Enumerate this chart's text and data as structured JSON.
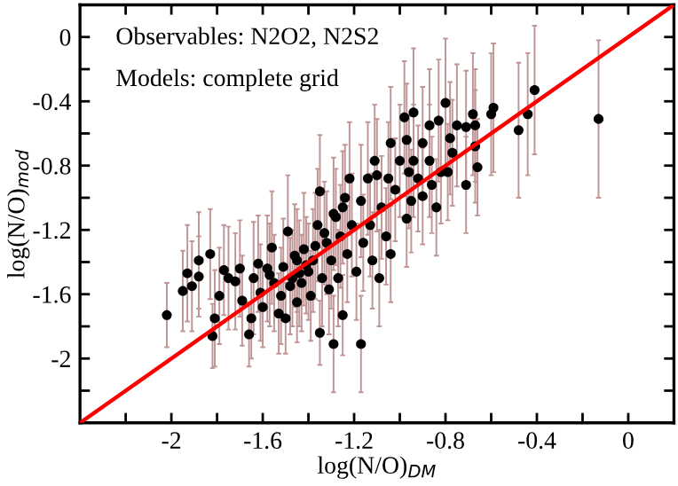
{
  "chart_data": {
    "type": "scatter",
    "xlabel": "log(N/O)$_{DM}$",
    "ylabel": "log(N/O)$_{mod}$",
    "annotations": [
      "Observables: N2O2, N2S2",
      "Models: complete grid"
    ],
    "xlim": [
      -2.4,
      0.2
    ],
    "ylim": [
      -2.4,
      0.2
    ],
    "xticks": [
      {
        "value": -2.2,
        "label": null
      },
      -2,
      {
        "value": -1.8,
        "label": null
      },
      -1.6,
      {
        "value": -1.4,
        "label": null
      },
      -1.2,
      {
        "value": -1,
        "label": null
      },
      -0.8,
      {
        "value": -0.6,
        "label": null
      },
      -0.4,
      {
        "value": -0.2,
        "label": null
      },
      0
    ],
    "yticks": [
      {
        "value": -2.2,
        "label": null
      },
      -2,
      {
        "value": -1.8,
        "label": null
      },
      -1.6,
      {
        "value": -1.4,
        "label": null
      },
      -1.2,
      {
        "value": -1,
        "label": null
      },
      -0.8,
      {
        "value": -0.6,
        "label": null
      },
      -0.4,
      {
        "value": -0.2,
        "label": null
      },
      0
    ],
    "grid": false,
    "legend": false,
    "series": [
      {
        "color": "#000000",
        "marker": "circle",
        "x": [
          -2.02,
          -1.95,
          -1.93,
          -1.91,
          -1.88,
          -1.88,
          -1.82,
          -1.81,
          -1.83,
          -1.79,
          -1.75,
          -1.7,
          -1.69,
          -1.66,
          -1.65,
          -1.64,
          -1.61,
          -1.6,
          -1.58,
          -1.56,
          -1.55,
          -1.53,
          -1.52,
          -1.51,
          -1.5,
          -1.49,
          -1.47,
          -1.45,
          -1.45,
          -1.43,
          -1.42,
          -1.4,
          -1.39,
          -1.38,
          -1.36,
          -1.35,
          -1.35,
          -1.34,
          -1.32,
          -1.31,
          -1.3,
          -1.29,
          -1.29,
          -1.27,
          -1.26,
          -1.25,
          -1.23,
          -1.25,
          -1.22,
          -1.21,
          -1.19,
          -1.17,
          -1.17,
          -1.16,
          -1.14,
          -1.13,
          -1.12,
          -1.11,
          -1.09,
          -1.08,
          -1.06,
          -1.05,
          -1.04,
          -1.04,
          -1.02,
          -1.0,
          -0.98,
          -0.97,
          -0.97,
          -0.96,
          -0.95,
          -0.94,
          -0.94,
          -0.92,
          -0.9,
          -0.9,
          -0.87,
          -0.87,
          -0.84,
          -0.83,
          -0.82,
          -0.8,
          -0.79,
          -0.78,
          -0.77,
          -0.75,
          -0.86,
          -0.71,
          -0.71,
          -0.68,
          -0.67,
          -0.67,
          -0.66,
          -0.59,
          -0.6,
          -0.48,
          -0.44,
          -0.41,
          -0.13,
          -1.57,
          -1.48,
          -1.44,
          -1.41,
          -1.46,
          -1.37,
          -1.62,
          -1.72,
          -1.77,
          -1.33,
          -1.28,
          -1.24,
          -1.1
        ],
        "values": [
          -1.73,
          -1.58,
          -1.47,
          -1.55,
          -1.39,
          -1.49,
          -1.86,
          -1.75,
          -1.35,
          -1.61,
          -1.5,
          -1.44,
          -1.64,
          -1.85,
          -1.75,
          -1.5,
          -1.59,
          -1.68,
          -1.44,
          -1.31,
          -1.53,
          -1.72,
          -1.61,
          -1.43,
          -1.75,
          -1.21,
          -1.5,
          -1.39,
          -1.65,
          -1.53,
          -1.32,
          -1.46,
          -1.61,
          -1.39,
          -1.17,
          -0.96,
          -1.84,
          -1.5,
          -1.28,
          -1.57,
          -1.39,
          -1.91,
          -1.1,
          -1.5,
          -1.24,
          -1.06,
          -1.35,
          -1.73,
          -0.88,
          -1.17,
          -1.46,
          -1.91,
          -1.02,
          -1.28,
          -0.88,
          -1.17,
          -1.39,
          -0.77,
          -1.5,
          -1.06,
          -1.24,
          -0.88,
          -0.66,
          -1.35,
          -0.95,
          -0.77,
          -0.5,
          -0.64,
          -1.13,
          -0.84,
          -1.02,
          -0.77,
          -0.47,
          -0.88,
          -0.66,
          -0.99,
          -0.55,
          -0.77,
          -1.06,
          -0.52,
          -0.84,
          -0.41,
          -0.84,
          -0.63,
          -0.72,
          -0.55,
          -0.92,
          -0.92,
          -0.56,
          -0.48,
          -0.68,
          -0.55,
          -0.81,
          -0.44,
          -0.48,
          -0.58,
          -0.48,
          -0.33,
          -0.51,
          -1.48,
          -1.55,
          -1.47,
          -1.42,
          -1.36,
          -1.3,
          -1.41,
          -1.52,
          -1.45,
          -1.22,
          -1.12,
          -1.0,
          -0.86
        ],
        "errors": [
          0.2,
          0.25,
          0.3,
          0.28,
          0.3,
          0.25,
          0.2,
          0.3,
          0.28,
          0.3,
          0.32,
          0.3,
          0.28,
          0.2,
          0.25,
          0.35,
          0.3,
          0.25,
          0.33,
          0.35,
          0.3,
          0.25,
          0.3,
          0.3,
          0.22,
          0.35,
          0.3,
          0.32,
          0.25,
          0.3,
          0.35,
          0.3,
          0.28,
          0.32,
          0.35,
          0.35,
          0.2,
          0.3,
          0.32,
          0.28,
          0.3,
          0.3,
          0.35,
          0.3,
          0.32,
          0.35,
          0.3,
          0.25,
          0.35,
          0.32,
          0.3,
          0.3,
          0.35,
          0.3,
          0.35,
          0.32,
          0.3,
          0.35,
          0.3,
          0.32,
          0.3,
          0.35,
          0.35,
          0.3,
          0.32,
          0.35,
          0.35,
          0.35,
          0.3,
          0.35,
          0.32,
          0.35,
          0.4,
          0.33,
          0.35,
          0.3,
          0.35,
          0.35,
          0.3,
          0.38,
          0.32,
          0.4,
          0.3,
          0.35,
          0.33,
          0.38,
          0.3,
          0.3,
          0.35,
          0.38,
          0.35,
          0.35,
          0.3,
          0.4,
          0.38,
          0.42,
          0.38,
          0.4,
          0.49,
          0.32,
          0.3,
          0.33,
          0.3,
          0.32,
          0.33,
          0.3,
          0.3,
          0.28,
          0.32,
          0.3,
          0.33,
          0.35
        ]
      },
      {
        "type": "line",
        "color": "#ff0000",
        "x": [
          -2.4,
          0.2
        ],
        "values": [
          -2.4,
          0.2
        ]
      }
    ]
  }
}
